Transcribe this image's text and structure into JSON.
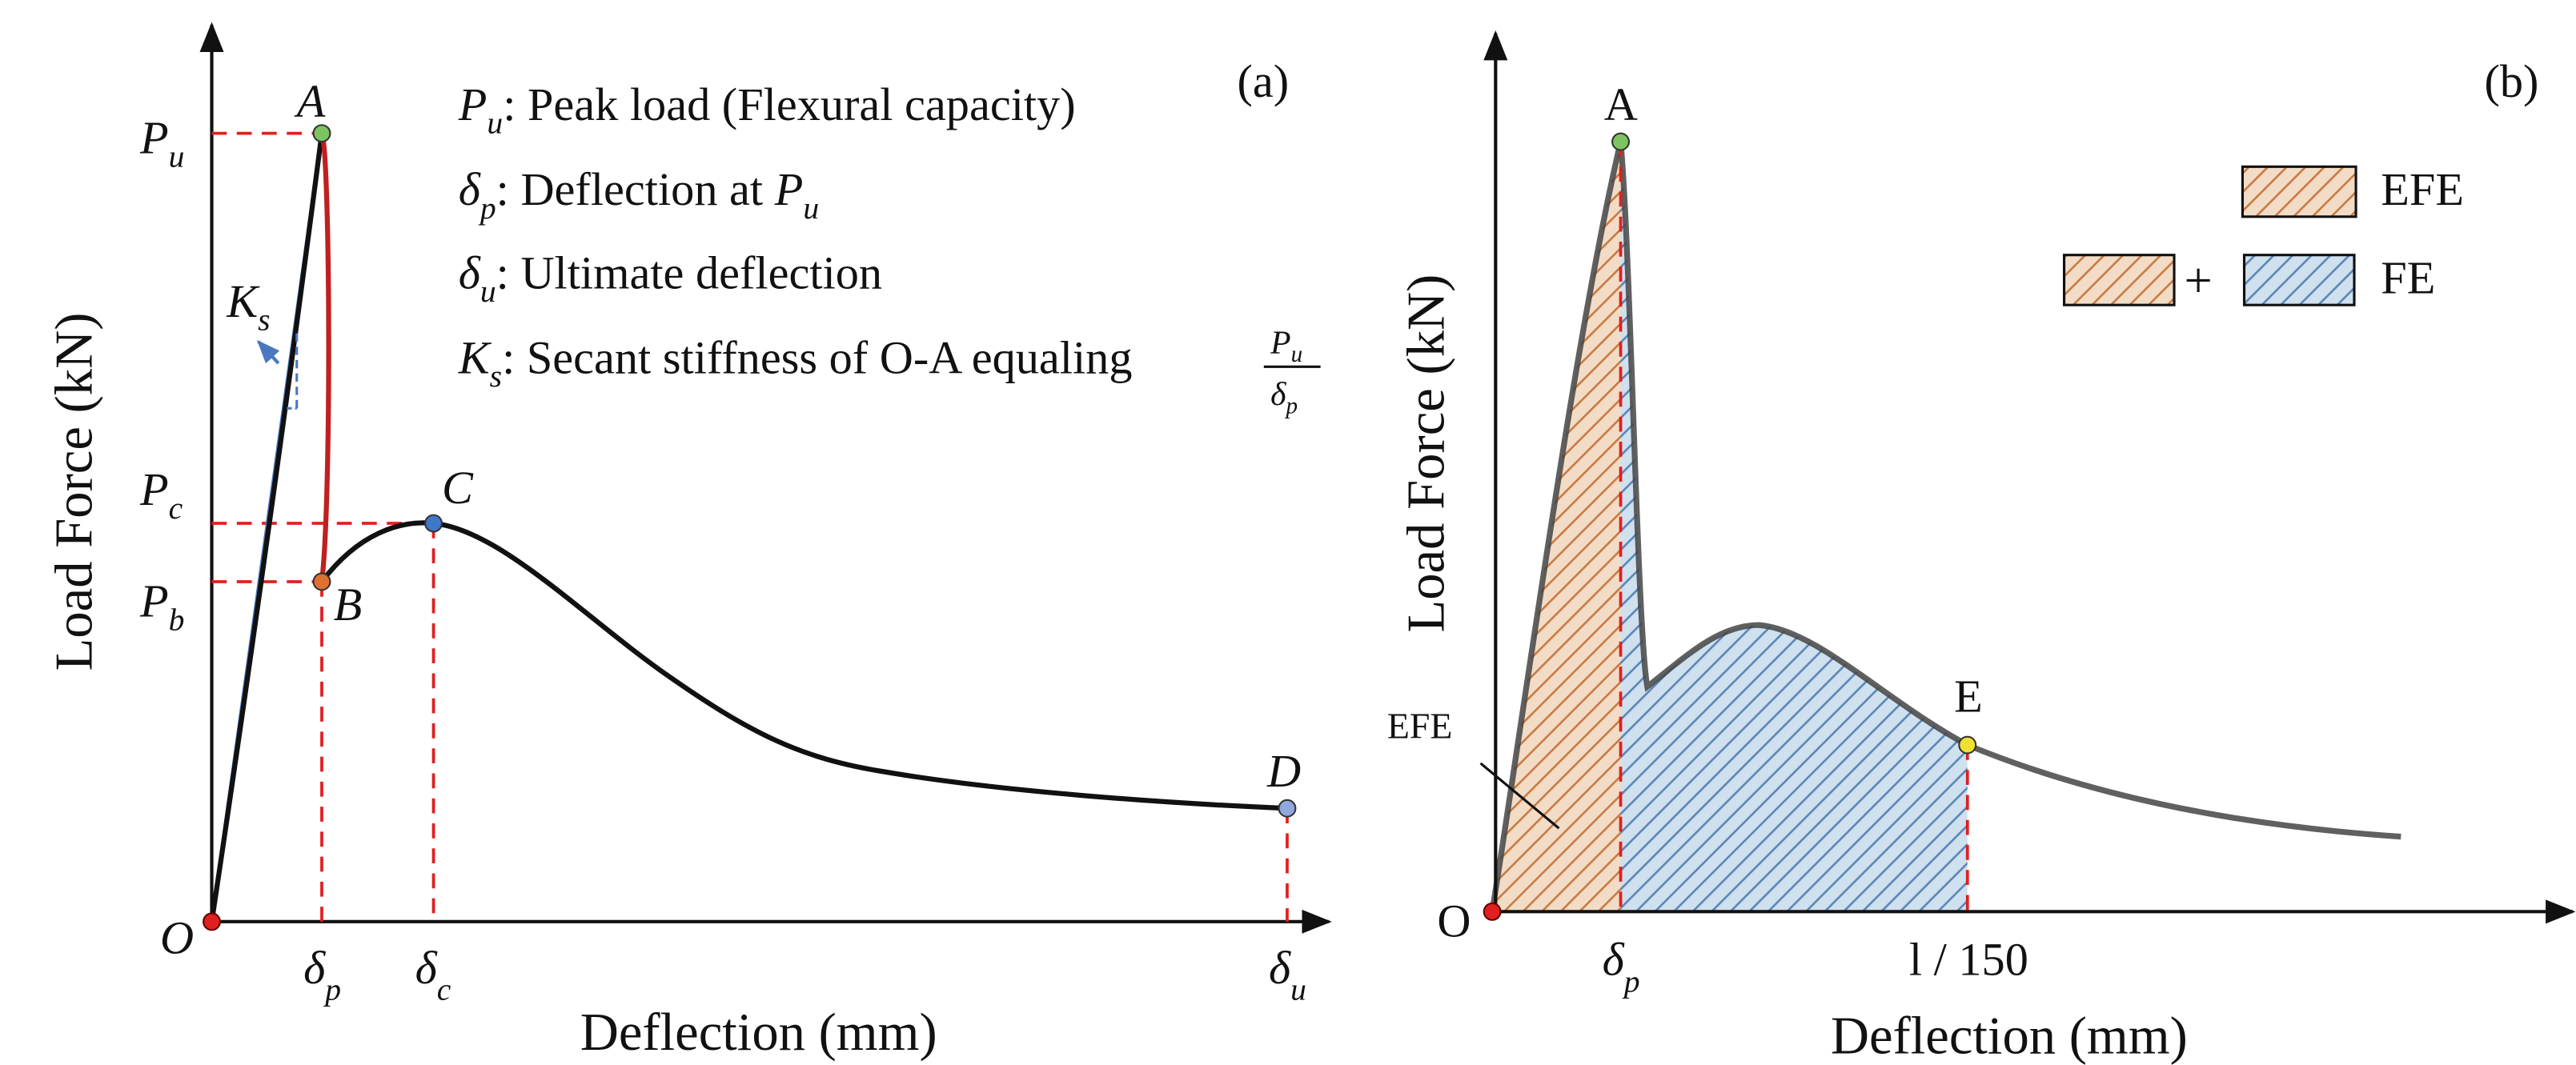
{
  "panel_a": {
    "label": "(a)",
    "y_axis_label": "Load Force (kN)",
    "x_axis_label": "Deflection (mm)",
    "points": {
      "O": "O",
      "A": "A",
      "B": "B",
      "C": "C",
      "D": "D"
    },
    "y_ticks": [
      {
        "symbol": "P",
        "sub": "u"
      },
      {
        "symbol": "P",
        "sub": "c"
      },
      {
        "symbol": "P",
        "sub": "b"
      }
    ],
    "x_ticks": [
      {
        "symbol": "δ",
        "sub": "p"
      },
      {
        "symbol": "δ",
        "sub": "c"
      },
      {
        "symbol": "δ",
        "sub": "u"
      }
    ],
    "stiffness": {
      "symbol": "K",
      "sub": "s"
    },
    "notes": [
      {
        "symbol": "P",
        "sub": "u",
        "text": ": Peak load (Flexural capacity)"
      },
      {
        "symbol": "δ",
        "sub": "p",
        "text": ": Deflection at ",
        "tail_symbol": "P",
        "tail_sub": "u"
      },
      {
        "symbol": "δ",
        "sub": "u",
        "text": ": Ultimate deflection"
      },
      {
        "symbol": "K",
        "sub": "s",
        "text": ": Secant stiffness of O-A equaling",
        "fraction": {
          "num_symbol": "P",
          "num_sub": "u",
          "den_symbol": "δ",
          "den_sub": "p"
        }
      }
    ]
  },
  "panel_b": {
    "label": "(b)",
    "y_axis_label": "Load Force (kN)",
    "x_axis_label": "Deflection (mm)",
    "points": {
      "O": "O",
      "A": "A",
      "E": "E"
    },
    "x_ticks": [
      {
        "symbol": "δ",
        "sub": "p"
      },
      {
        "text": "l / 150"
      }
    ],
    "annotation": "EFE",
    "legend": {
      "efe": "EFE",
      "plus": "+",
      "fe": "FE"
    }
  }
}
